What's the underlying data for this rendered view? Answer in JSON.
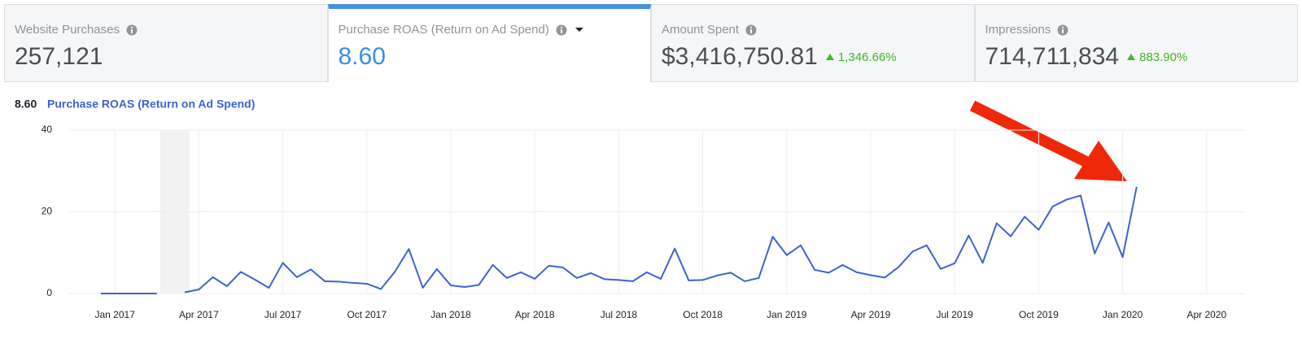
{
  "tabs": [
    {
      "label": "Website Purchases",
      "value": "257,121"
    },
    {
      "label": "Purchase ROAS (Return on Ad Spend)",
      "value": "8.60",
      "active": true
    },
    {
      "label": "Amount Spent",
      "value": "$3,416,750.81",
      "change": "1,346.66%"
    },
    {
      "label": "Impressions",
      "value": "714,711,834",
      "change": "883.90%"
    }
  ],
  "chart_data": {
    "type": "line",
    "title_value": "8.60",
    "title": "Purchase ROAS (Return on Ad Spend)",
    "categories": [
      null,
      "Jan 2017",
      null,
      null,
      null,
      null,
      null,
      "Apr 2017",
      null,
      null,
      null,
      null,
      null,
      "Jul 2017",
      null,
      null,
      null,
      null,
      null,
      "Oct 2017",
      null,
      null,
      null,
      null,
      null,
      "Jan 2018",
      null,
      null,
      null,
      null,
      null,
      "Apr 2018",
      null,
      null,
      null,
      null,
      null,
      "Jul 2018",
      null,
      null,
      null,
      null,
      null,
      "Oct 2018",
      null,
      null,
      null,
      null,
      null,
      "Jan 2019",
      null,
      null,
      null,
      null,
      null,
      "Apr 2019",
      null,
      null,
      null,
      null,
      null,
      "Jul 2019",
      null,
      null,
      null,
      null,
      null,
      "Oct 2019",
      null,
      null,
      null,
      null,
      null,
      "Jan 2020",
      null,
      null,
      null,
      null,
      null,
      "Apr 2020"
    ],
    "series": [
      {
        "color": "#3c64d0",
        "values": [
          0,
          0,
          0,
          0,
          0,
          null,
          0.3,
          1,
          4,
          1.8,
          5.3,
          3.4,
          1.4,
          7.5,
          4,
          5.9,
          3,
          2.9,
          2.6,
          2.4,
          1.1,
          5.3,
          10.9,
          1.4,
          6,
          2,
          1.6,
          2.1,
          7,
          3.8,
          5.2,
          3.6,
          6.8,
          6.4,
          3.8,
          5,
          3.5,
          3.3,
          3.0,
          5.2,
          3.6,
          11,
          3.2,
          3.3,
          4.4,
          5.1,
          3.0,
          3.8,
          13.9,
          9.4,
          11.8,
          5.8,
          5.1,
          7,
          5.2,
          4.5,
          3.9,
          6.5,
          10.3,
          11.8,
          6,
          7.4,
          14.2,
          7.5,
          17.2,
          14,
          18.8,
          15.6,
          21.3,
          23,
          24,
          9.8,
          17.4,
          8.9,
          26.1,
          null,
          null,
          null,
          null,
          null
        ]
      }
    ],
    "ylim": [
      0,
      40
    ],
    "yticks": [
      0,
      20,
      40
    ],
    "grid": true
  }
}
